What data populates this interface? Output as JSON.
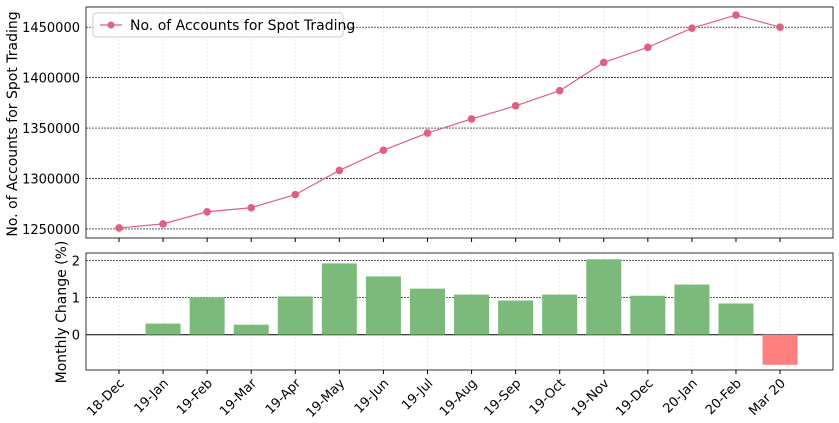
{
  "chart_data": [
    {
      "type": "line",
      "title": "",
      "xlabel": "",
      "ylabel": "No. of Accounts for Spot Trading",
      "legend": {
        "label": "No. of Accounts for Spot Trading",
        "placement": "top-left"
      },
      "color": "#e06080",
      "categories": [
        "18-Dec",
        "19-Jan",
        "19-Feb",
        "19-Mar",
        "19-Apr",
        "19-May",
        "19-Jun",
        "19-Jul",
        "19-Aug",
        "19-Sep",
        "19-Oct",
        "19-Nov",
        "19-Dec",
        "20-Jan",
        "20-Feb",
        "Mar 20"
      ],
      "values": [
        1251000,
        1255000,
        1267000,
        1271000,
        1284000,
        1308000,
        1328000,
        1345000,
        1359000,
        1372000,
        1387000,
        1415000,
        1430000,
        1449000,
        1462000,
        1450000
      ],
      "yticks": [
        "1250000",
        "1300000",
        "1350000",
        "1400000",
        "1450000"
      ],
      "ylim": [
        1241000,
        1470000
      ],
      "grid": true
    },
    {
      "type": "bar",
      "title": "",
      "xlabel": "",
      "ylabel": "Monthly Change (%)",
      "positive_color": "#7cba7c",
      "negative_color": "#ff7f7f",
      "categories": [
        "18-Dec",
        "19-Jan",
        "19-Feb",
        "19-Mar",
        "19-Apr",
        "19-May",
        "19-Jun",
        "19-Jul",
        "19-Aug",
        "19-Sep",
        "19-Oct",
        "19-Nov",
        "19-Dec",
        "20-Jan",
        "20-Feb",
        "Mar 20"
      ],
      "values": [
        null,
        0.3,
        1.0,
        0.27,
        1.03,
        1.92,
        1.57,
        1.24,
        1.08,
        0.92,
        1.08,
        2.03,
        1.05,
        1.35,
        0.84,
        -0.81
      ],
      "yticks": [
        "0",
        "1",
        "2"
      ],
      "ylim": [
        -0.95,
        2.2
      ],
      "grid": true
    }
  ]
}
